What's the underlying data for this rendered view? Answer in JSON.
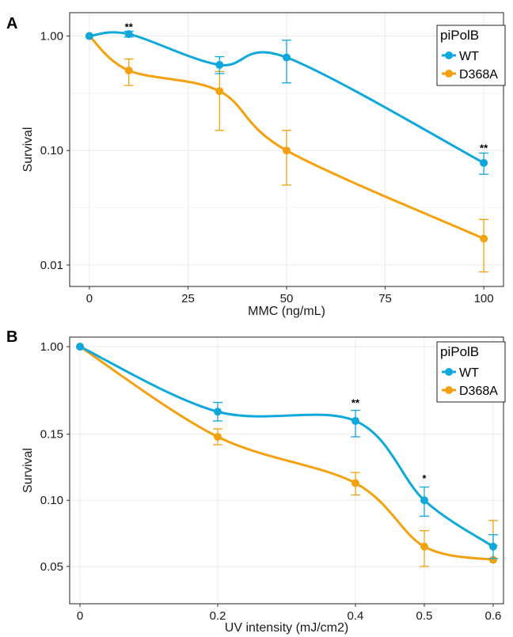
{
  "chart_data": [
    {
      "panel": "A",
      "type": "line",
      "xlabel": "MMC (ng/mL)",
      "ylabel": "Survival",
      "yscale": "log",
      "xlim": [
        -5,
        105
      ],
      "ylim": [
        0.0065,
        1.6
      ],
      "xticks": [
        0,
        25,
        50,
        75,
        100
      ],
      "xtick_labels": [
        "0",
        "25",
        "50",
        "75",
        "100"
      ],
      "yticks": [
        0.01,
        0.1,
        1
      ],
      "ytick_labels": [
        "0.01",
        "0.10",
        "1.00"
      ],
      "grid": true,
      "legend": {
        "title": "piPolB",
        "position": "top-right"
      },
      "series": [
        {
          "name": "WT",
          "color": "#0fa8dc",
          "x": [
            0,
            10,
            33,
            50,
            100
          ],
          "y": [
            1.0,
            1.04,
            0.56,
            0.65,
            0.078
          ],
          "err_low": [
            1.0,
            0.98,
            0.47,
            0.39,
            0.062
          ],
          "err_high": [
            1.0,
            1.1,
            0.66,
            0.92,
            0.095
          ]
        },
        {
          "name": "D368A",
          "color": "#f4a10f",
          "x": [
            0,
            10,
            33,
            50,
            100
          ],
          "y": [
            1.0,
            0.5,
            0.33,
            0.1,
            0.017
          ],
          "err_low": [
            1.0,
            0.37,
            0.15,
            0.05,
            0.0087
          ],
          "err_high": [
            1.0,
            0.63,
            0.49,
            0.15,
            0.025
          ]
        }
      ],
      "annotations": [
        {
          "text": "**",
          "x": 10,
          "y": 1.12
        },
        {
          "text": "**",
          "x": 100,
          "y": 0.098
        }
      ]
    },
    {
      "panel": "B",
      "type": "line",
      "xlabel": "UV intensity (mJ/cm2)",
      "ylabel": "Survival",
      "yscale": "custom",
      "xlim": [
        -0.015,
        0.615
      ],
      "ylim": [
        0.0,
        1.05
      ],
      "xticks": [
        0,
        0.2,
        0.4,
        0.5,
        0.6
      ],
      "xtick_labels": [
        "0",
        "0.2",
        "0.4",
        "0.5",
        "0.6"
      ],
      "yticks": [
        0.05,
        0.1,
        0.15,
        1.0
      ],
      "ytick_labels": [
        "0.05",
        "0.10",
        "0.15",
        "1.00"
      ],
      "grid": true,
      "legend": {
        "title": "piPolB",
        "position": "top-right"
      },
      "series": [
        {
          "name": "WT",
          "color": "#0fa8dc",
          "x": [
            0,
            0.2,
            0.4,
            0.5,
            0.6
          ],
          "y": [
            1.0,
            0.167,
            0.16,
            0.1,
            0.065
          ],
          "err_low": [
            1.0,
            0.16,
            0.148,
            0.088,
            0.056
          ],
          "err_high": [
            1.0,
            0.174,
            0.168,
            0.11,
            0.074
          ]
        },
        {
          "name": "D368A",
          "color": "#f4a10f",
          "x": [
            0,
            0.2,
            0.4,
            0.5,
            0.6
          ],
          "y": [
            1.0,
            0.148,
            0.113,
            0.065,
            0.055
          ],
          "err_low": [
            1.0,
            0.142,
            0.104,
            0.05,
            0.04
          ],
          "err_high": [
            1.0,
            0.154,
            0.121,
            0.077,
            0.066
          ]
        }
      ],
      "annotations": [
        {
          "text": "**",
          "x": 0.4,
          "y": 0.171
        },
        {
          "text": "*",
          "x": 0.5,
          "y": 0.114
        }
      ]
    }
  ]
}
